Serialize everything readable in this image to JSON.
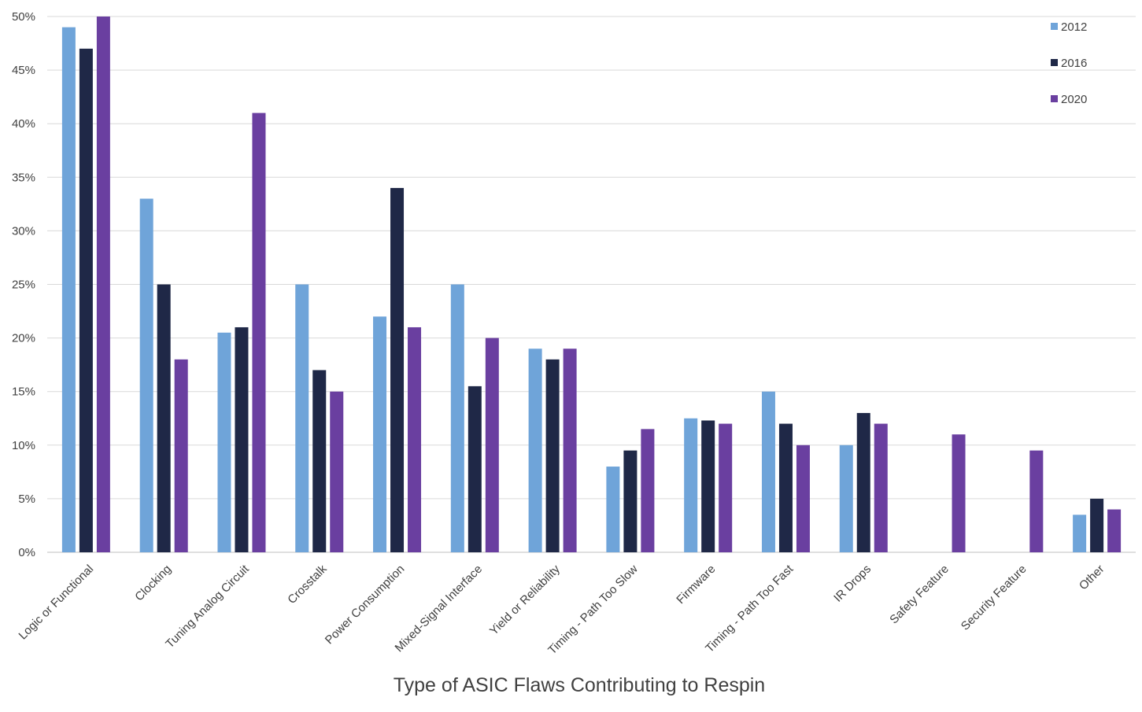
{
  "chart_data": {
    "type": "bar",
    "title": "",
    "xlabel": "Type of ASIC Flaws Contributing to Respin",
    "ylabel": "",
    "ylim": [
      0,
      50
    ],
    "yticks": [
      "0%",
      "5%",
      "10%",
      "15%",
      "20%",
      "25%",
      "30%",
      "35%",
      "40%",
      "45%",
      "50%"
    ],
    "grid": true,
    "legend_position": "top-right",
    "categories": [
      "Logic or Functional",
      "Clocking",
      "Tuning Analog Circuit",
      "Crosstalk",
      "Power Consumption",
      "Mixed-Signal Interface",
      "Yield or Reliability",
      "Timing - Path Too Slow",
      "Firmware",
      "Timing - Path Too Fast",
      "IR Drops",
      "Safety Feature",
      "Security Feature",
      "Other"
    ],
    "series": [
      {
        "name": "2012",
        "color": "#6fa4d9",
        "values": [
          49,
          33,
          20.5,
          25,
          22,
          25,
          19,
          8,
          12.5,
          15,
          10,
          null,
          null,
          3.5
        ]
      },
      {
        "name": "2016",
        "color": "#1f2847",
        "values": [
          47,
          25,
          21,
          17,
          34,
          15.5,
          18,
          9.5,
          12.3,
          12,
          13,
          null,
          null,
          5
        ]
      },
      {
        "name": "2020",
        "color": "#6a3fa0",
        "values": [
          50,
          18,
          41,
          15,
          21,
          20,
          19,
          11.5,
          12,
          10,
          12,
          11,
          9.5,
          4
        ]
      }
    ]
  }
}
